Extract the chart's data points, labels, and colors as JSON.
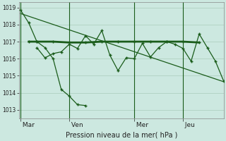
{
  "background_color": "#cce8e0",
  "grid_color": "#aaccbb",
  "line_color": "#1a5c1a",
  "title": "Pression niveau de la mer( hPa )",
  "ylim": [
    1012.5,
    1019.3
  ],
  "yticks": [
    1013,
    1014,
    1015,
    1016,
    1017,
    1018,
    1019
  ],
  "day_labels": [
    " Mar",
    " Ven",
    " Mer",
    " Jeu"
  ],
  "day_positions": [
    0,
    3,
    7,
    10
  ],
  "xlim": [
    -0.1,
    12.5
  ],
  "trend_x": [
    0,
    12.5
  ],
  "trend_y": [
    1018.65,
    1014.65
  ],
  "series1_x": [
    0,
    0.5,
    1,
    1.5,
    2,
    2.5,
    3,
    3.5,
    4
  ],
  "series1_y": [
    1018.85,
    1018.1,
    1017.0,
    1016.65,
    1016.0,
    1014.2,
    1013.8,
    1013.3,
    1013.25
  ],
  "series2_x": [
    0.5,
    1,
    2,
    3,
    4,
    5,
    6,
    7,
    8,
    9,
    10,
    11
  ],
  "series2_y": [
    1017.0,
    1017.0,
    1017.0,
    1016.95,
    1016.95,
    1017.0,
    1017.0,
    1017.0,
    1017.0,
    1017.0,
    1017.0,
    1016.95
  ],
  "series3_x": [
    1,
    1.5,
    2,
    2.5,
    3,
    3.5,
    4,
    4.5,
    5,
    5.5,
    6,
    6.5,
    7,
    7.5,
    8,
    8.5,
    9,
    9.5,
    10,
    10.5,
    11,
    11.5,
    12,
    12.5
  ],
  "series3_y": [
    1016.65,
    1016.05,
    1016.3,
    1016.4,
    1016.85,
    1016.6,
    1017.35,
    1016.85,
    1017.65,
    1016.2,
    1015.3,
    1016.05,
    1016.0,
    1016.9,
    1016.1,
    1016.65,
    1017.0,
    1016.85,
    1016.6,
    1015.85,
    1017.45,
    1016.65,
    1015.85,
    1014.7
  ]
}
